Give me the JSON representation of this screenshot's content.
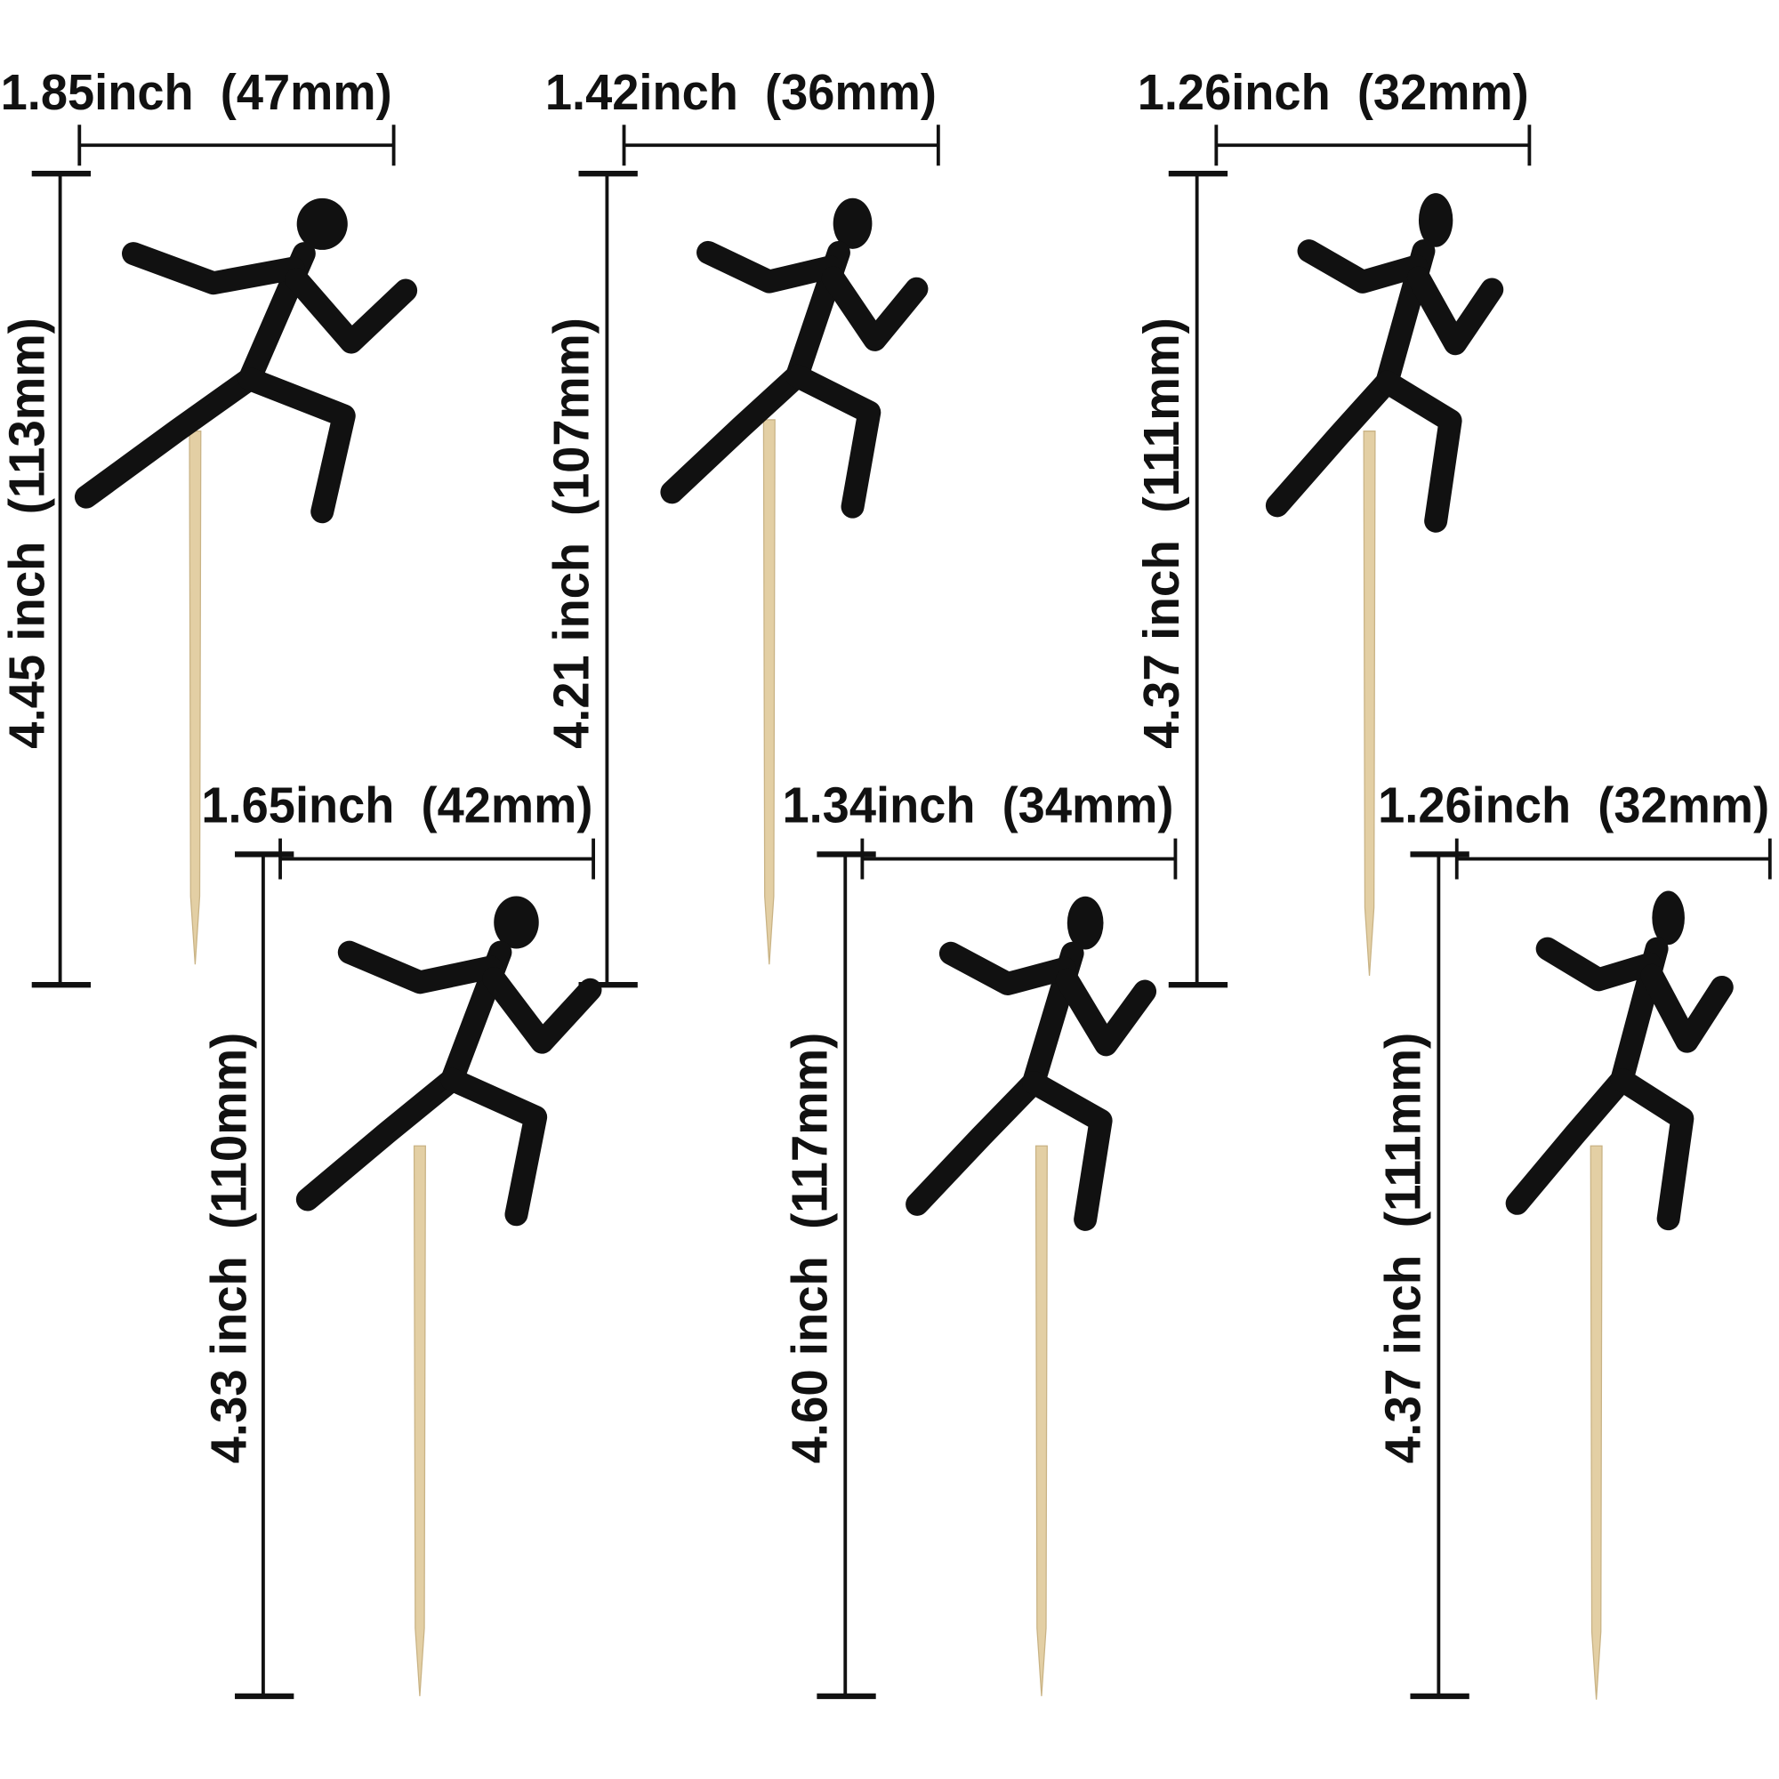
{
  "toppers": [
    {
      "width": "1.85inch  (47mm)",
      "height": "4.45 inch  (113mm)"
    },
    {
      "width": "1.42inch  (36mm)",
      "height": "4.21 inch  (107mm)"
    },
    {
      "width": "1.26inch  (32mm)",
      "height": "4.37 inch  (111mm)"
    },
    {
      "width": "1.65inch  (42mm)",
      "height": "4.33 inch  (110mm)"
    },
    {
      "width": "1.34inch  (34mm)",
      "height": "4.60 inch  (117mm)"
    },
    {
      "width": "1.26inch  (32mm)",
      "height": "4.37 inch  (111mm)"
    }
  ]
}
